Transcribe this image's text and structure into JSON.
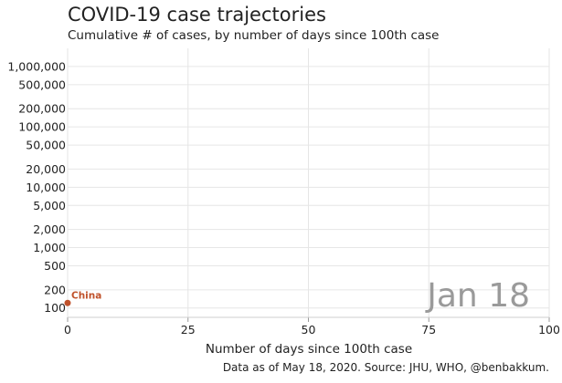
{
  "chart_data": {
    "type": "line",
    "title": "COVID-19 case trajectories",
    "subtitle": "Cumulative # of cases, by number of days since 100th case",
    "xlabel": "Number of days since 100th case",
    "ylabel": "",
    "xlim": [
      0,
      100
    ],
    "ylim": [
      70,
      2000000
    ],
    "y_scale": "log",
    "x_ticks": [
      0,
      25,
      50,
      75,
      100
    ],
    "x_tick_labels": [
      "0",
      "25",
      "50",
      "75",
      "100"
    ],
    "y_ticks": [
      100,
      200,
      500,
      1000,
      2000,
      5000,
      10000,
      20000,
      50000,
      100000,
      200000,
      500000,
      1000000
    ],
    "y_tick_labels": [
      "100",
      "200",
      "500",
      "1,000",
      "2,000",
      "5,000",
      "10,000",
      "20,000",
      "50,000",
      "100,000",
      "200,000",
      "500,000",
      "1,000,000"
    ],
    "grid": true,
    "series": [
      {
        "name": "China",
        "color": "#c0522b",
        "x": [
          0
        ],
        "y": [
          121
        ]
      }
    ],
    "date_stamp": "Jan 18",
    "caption": "Data as of May 18, 2020. Source: JHU, WHO, @benbakkum."
  }
}
